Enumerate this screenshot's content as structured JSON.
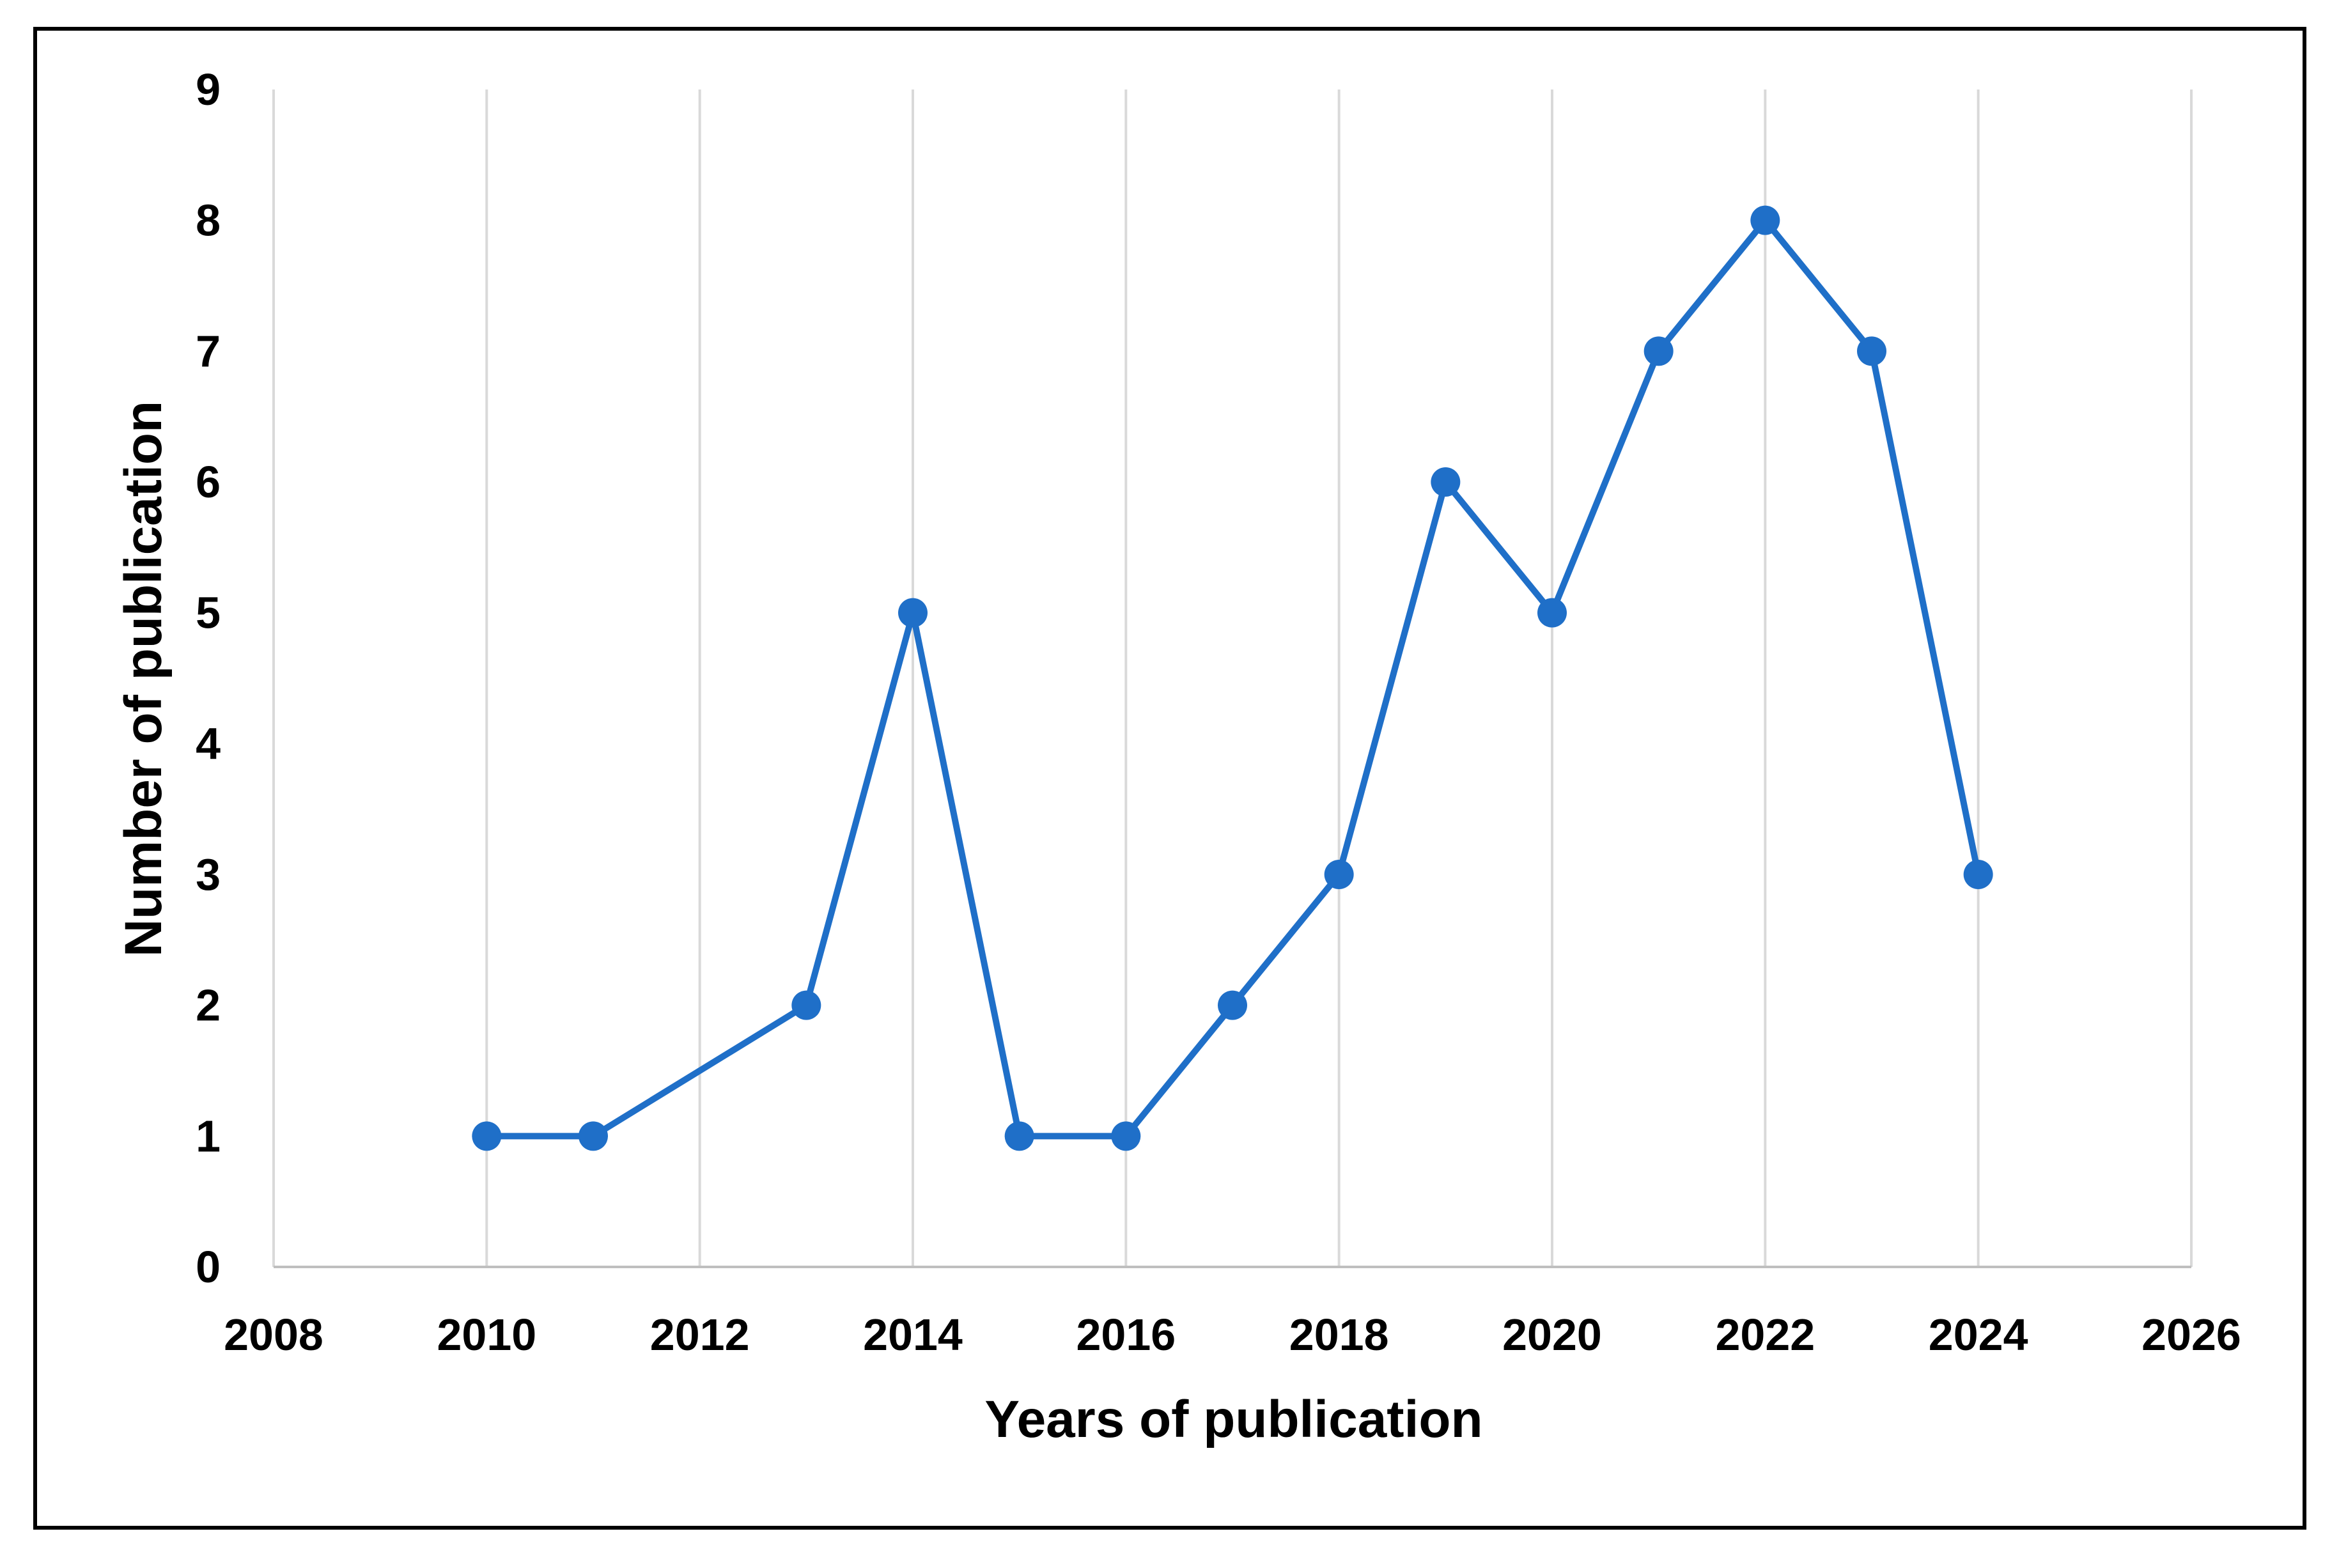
{
  "chart_data": {
    "type": "line",
    "title": "",
    "xlabel": "Years of publication",
    "ylabel": "Number of publication",
    "xlim": [
      2008,
      2026
    ],
    "ylim": [
      0,
      9
    ],
    "x_ticks": [
      2008,
      2010,
      2012,
      2014,
      2016,
      2018,
      2020,
      2022,
      2024,
      2026
    ],
    "y_ticks": [
      0,
      1,
      2,
      3,
      4,
      5,
      6,
      7,
      8,
      9
    ],
    "grid": "vertical",
    "legend": "none",
    "series": [
      {
        "color": "#1f6fc8",
        "x": [
          2010,
          2011,
          2013,
          2014,
          2015,
          2016,
          2017,
          2018,
          2019,
          2020,
          2021,
          2022,
          2023,
          2024
        ],
        "y": [
          1,
          1,
          2,
          5,
          1,
          1,
          2,
          3,
          6,
          5,
          7,
          8,
          7,
          3
        ]
      }
    ]
  },
  "colors": {
    "series": "#1f6fc8",
    "grid": "#d9d9d9",
    "axis": "#bfbfbf",
    "frame": "#000000"
  }
}
